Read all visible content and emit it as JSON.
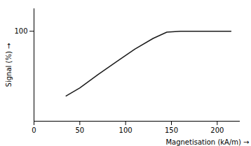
{
  "chart_data": {
    "type": "line",
    "x_label": "Magnetisation (kA/m)",
    "y_label": "Signal (%)",
    "x": [
      35,
      50,
      70,
      90,
      110,
      130,
      145,
      160,
      180,
      200,
      215
    ],
    "values": [
      28,
      37,
      52,
      66,
      80,
      92,
      99,
      100,
      100,
      100,
      100
    ],
    "color": "#1a1a1a",
    "xlim": [
      0,
      225
    ],
    "xticks": [
      0,
      50,
      100,
      150,
      200
    ],
    "ylim": [
      0,
      125
    ],
    "yticks": [
      100
    ],
    "grid": false
  }
}
